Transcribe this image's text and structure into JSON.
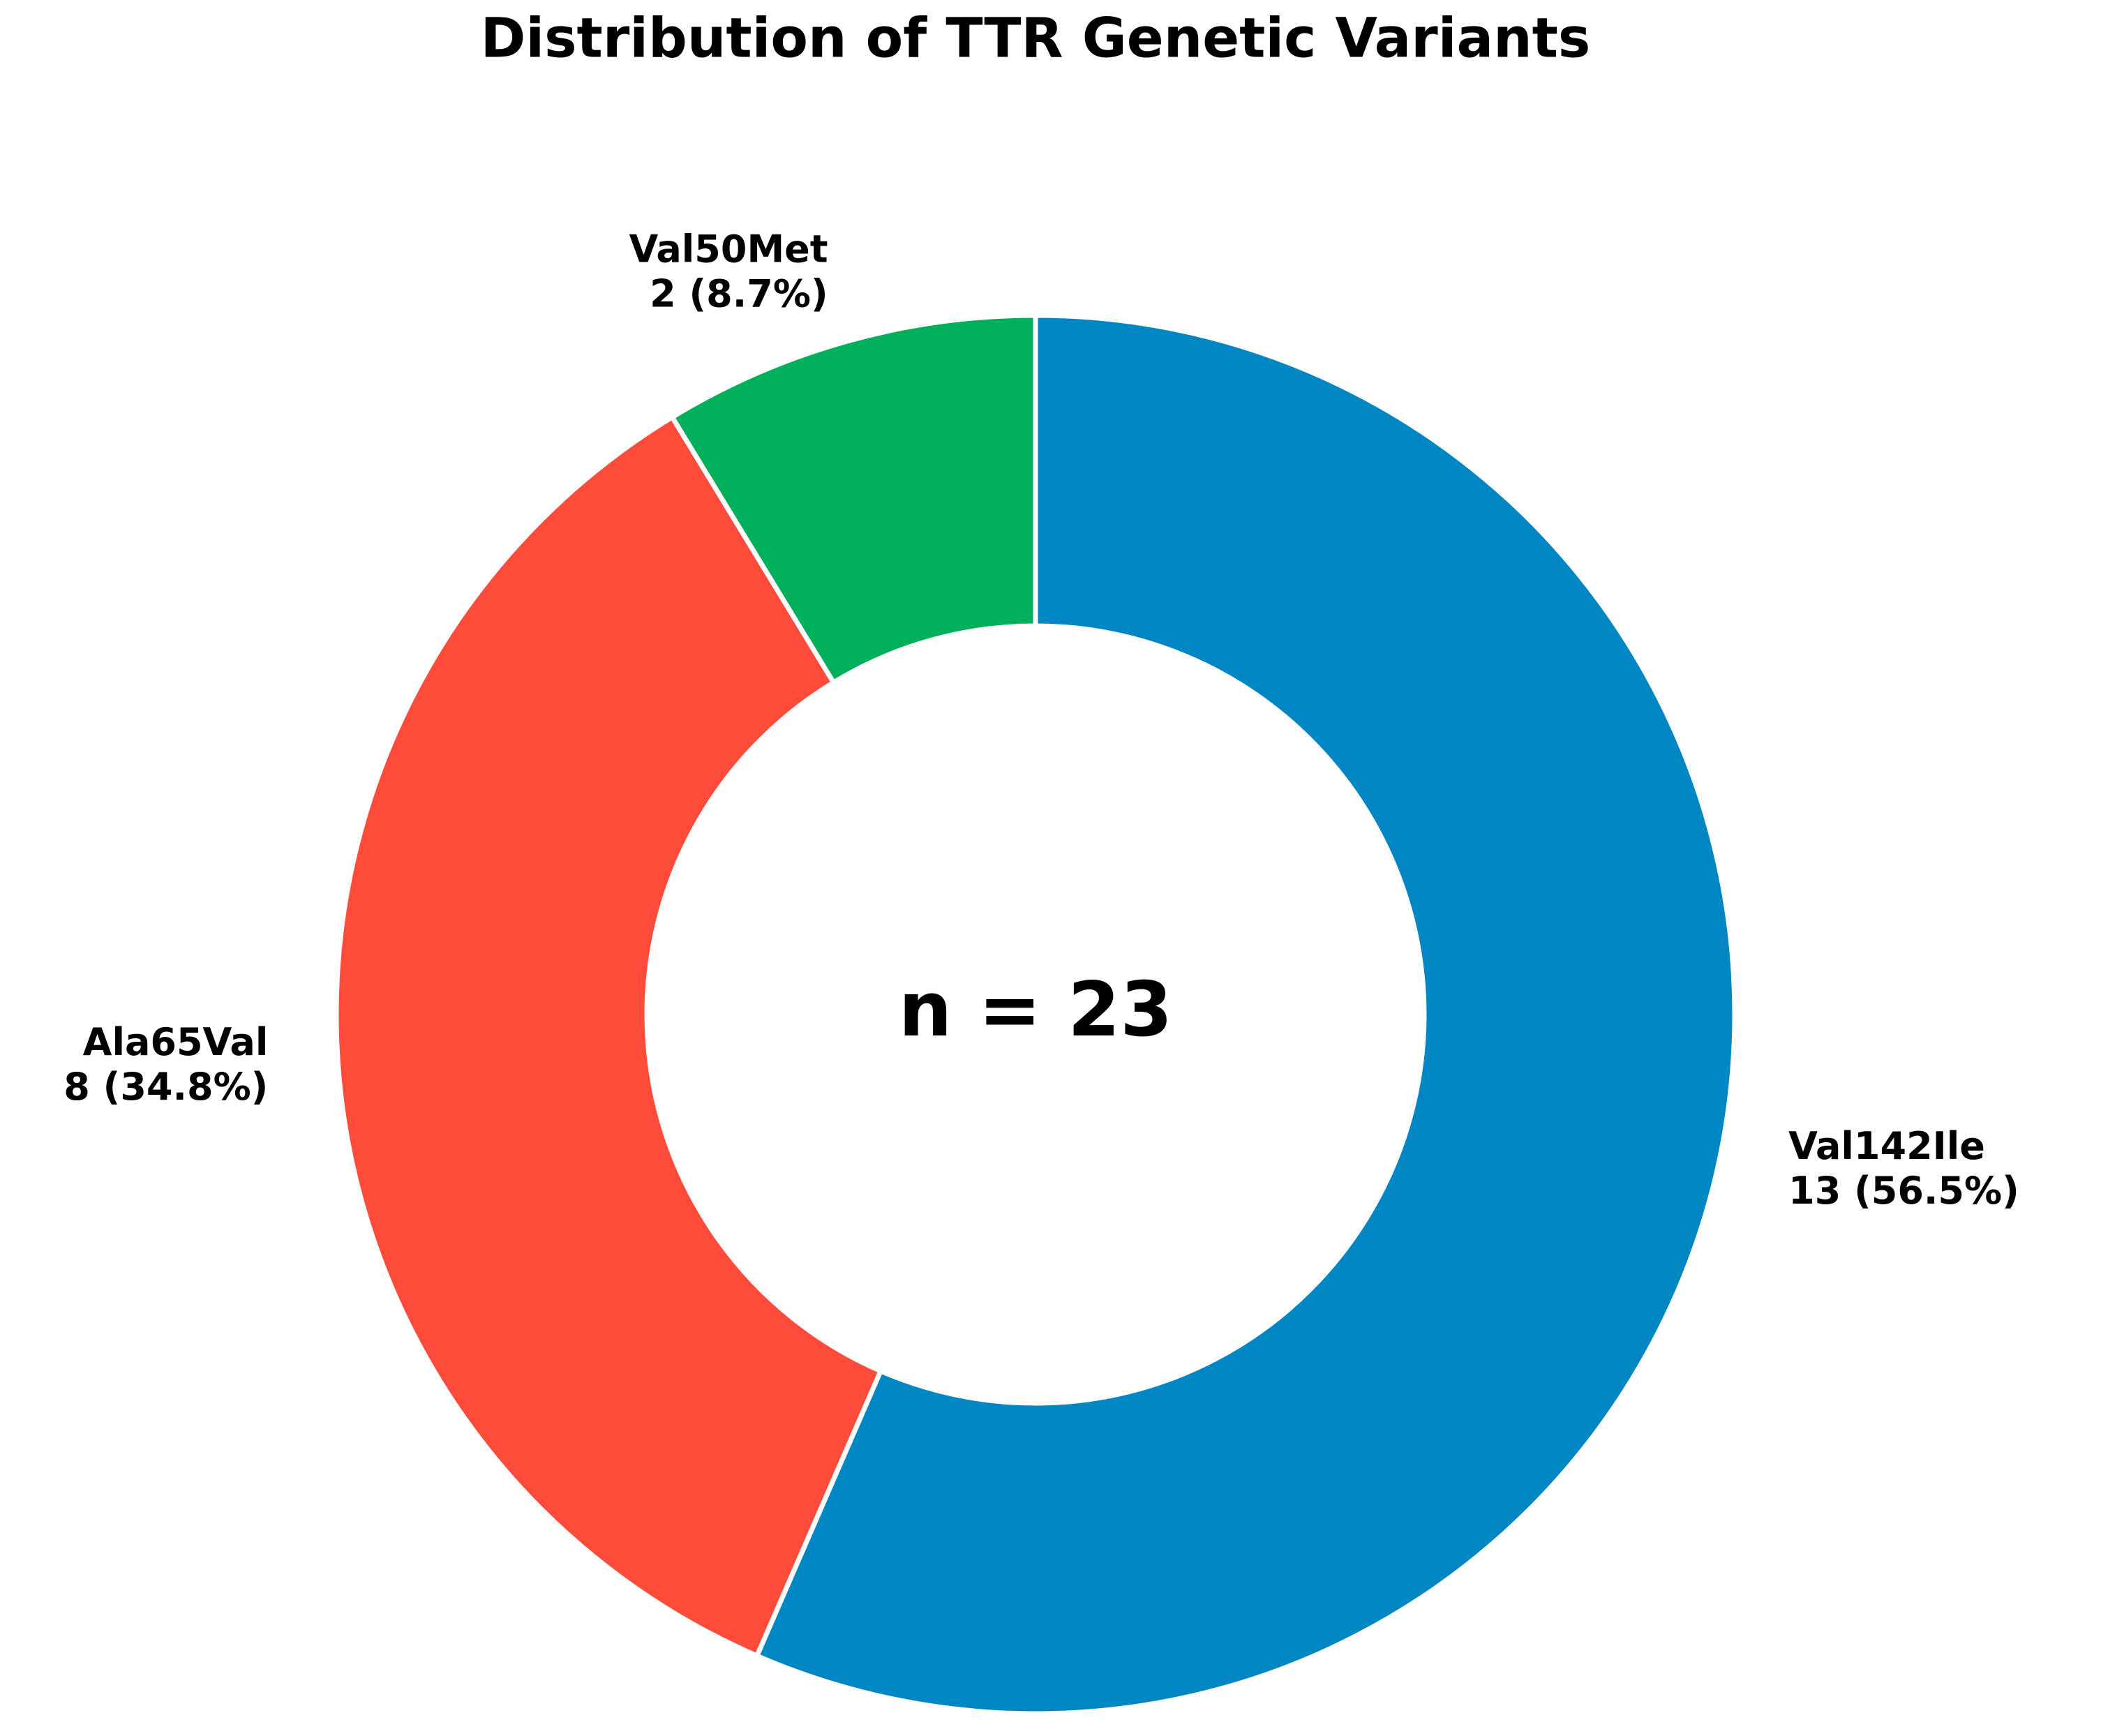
{
  "chart_data": {
    "type": "pie",
    "title": "Distribution of TTR Genetic Variants",
    "categories": [
      "Val142Ile",
      "Ala65Val",
      "Val50Met"
    ],
    "values": [
      13,
      8,
      2
    ],
    "value_labels": [
      "13 (56.5%)",
      "8 (34.8%)",
      "2 (8.7%)"
    ],
    "colors": [
      "#0086c3",
      "#ff4b3a",
      "#00af5a"
    ],
    "center_label": "n = 23",
    "start_angle": 90
  }
}
